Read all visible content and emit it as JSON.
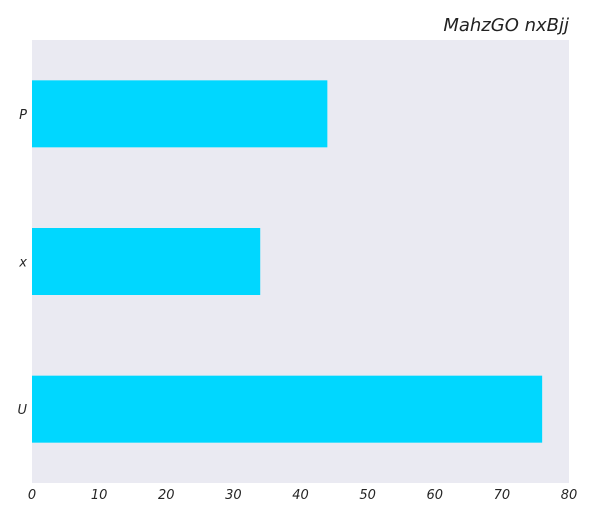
{
  "chart_data": {
    "type": "bar",
    "orientation": "horizontal",
    "title": "MahzGO nxBjj",
    "xlabel": "",
    "ylabel": "",
    "categories": [
      "P",
      "x",
      "U"
    ],
    "values": [
      44,
      34,
      76
    ],
    "xlim": [
      0,
      80
    ],
    "xticks": [
      0,
      10,
      20,
      30,
      40,
      50,
      60,
      70,
      80
    ],
    "grid": false,
    "bar_color": "#00D7FF",
    "plot_background": "#EAEAF2"
  }
}
